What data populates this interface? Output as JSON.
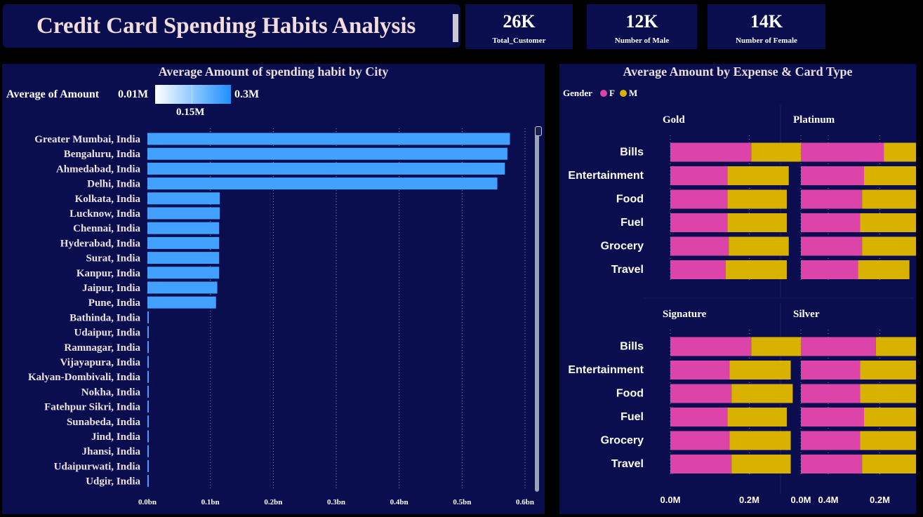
{
  "header": {
    "title": "Credit Card Spending Habits Analysis"
  },
  "kpis": [
    {
      "value": "26K",
      "label": "Total_Customer"
    },
    {
      "value": "12K",
      "label": "Number of Male"
    },
    {
      "value": "14K",
      "label": "Number of Female"
    }
  ],
  "colors": {
    "panel": "#0a0e4e",
    "bar": "#42a0ff",
    "female": "#dd44aa",
    "male": "#d9b200"
  },
  "chart_data": [
    {
      "type": "bar",
      "orientation": "horizontal",
      "title": "Average Amount of spending habit by City",
      "legend": {
        "label": "Average of Amount",
        "min": "0.01M",
        "mid": "0.15M",
        "max": "0.3M"
      },
      "categories": [
        "Greater Mumbai, India",
        "Bengaluru, India",
        "Ahmedabad, India",
        "Delhi, India",
        "Kolkata, India",
        "Lucknow, India",
        "Chennai, India",
        "Hyderabad, India",
        "Surat, India",
        "Kanpur, India",
        "Jaipur, India",
        "Pune, India",
        "Bathinda, India",
        "Udaipur, India",
        "Ramnagar, India",
        "Vijayapura, India",
        "Kalyan-Dombivali, India",
        "Nokha, India",
        "Fatehpur Sikri, India",
        "Sunabeda, India",
        "Jind, India",
        "Jhansi, India",
        "Udaipurwati, India",
        "Udgir, India"
      ],
      "values": [
        0.576,
        0.572,
        0.568,
        0.556,
        0.115,
        0.115,
        0.114,
        0.114,
        0.114,
        0.114,
        0.111,
        0.109,
        0.002,
        0.002,
        0.002,
        0.002,
        0.002,
        0.002,
        0.002,
        0.002,
        0.002,
        0.002,
        0.002,
        0.002
      ],
      "ticks": [
        "0.0bn",
        "0.1bn",
        "0.2bn",
        "0.3bn",
        "0.4bn",
        "0.5bn",
        "0.6bn"
      ],
      "xlim": [
        0,
        0.6
      ]
    },
    {
      "type": "bar",
      "orientation": "horizontal",
      "stacked": true,
      "title": "Average Amount by Expense & Card Type",
      "legend": {
        "title": "Gender",
        "items": [
          "F",
          "M"
        ]
      },
      "categories": [
        "Bills",
        "Entertainment",
        "Food",
        "Fuel",
        "Grocery",
        "Travel"
      ],
      "ticks": [
        "0.0M",
        "0.2M",
        "0.4M"
      ],
      "xlim": [
        0,
        0.4
      ],
      "facets": [
        {
          "name": "Gold",
          "series": [
            {
              "name": "F",
              "values": [
                0.205,
                0.145,
                0.145,
                0.145,
                0.148,
                0.14
              ]
            },
            {
              "name": "M",
              "values": [
                0.15,
                0.155,
                0.15,
                0.15,
                0.152,
                0.155
              ]
            }
          ]
        },
        {
          "name": "Platinum",
          "series": [
            {
              "name": "F",
              "values": [
                0.21,
                0.16,
                0.155,
                0.15,
                0.155,
                0.145
              ]
            },
            {
              "name": "M",
              "values": [
                0.145,
                0.155,
                0.155,
                0.15,
                0.15,
                0.13
              ]
            }
          ]
        },
        {
          "name": "Signature",
          "series": [
            {
              "name": "F",
              "values": [
                0.205,
                0.15,
                0.155,
                0.145,
                0.15,
                0.155
              ]
            },
            {
              "name": "M",
              "values": [
                0.15,
                0.155,
                0.155,
                0.15,
                0.155,
                0.15
              ]
            }
          ]
        },
        {
          "name": "Silver",
          "series": [
            {
              "name": "F",
              "values": [
                0.19,
                0.15,
                0.15,
                0.16,
                0.15,
                0.155
              ]
            },
            {
              "name": "M",
              "values": [
                0.15,
                0.15,
                0.145,
                0.155,
                0.155,
                0.155
              ]
            }
          ]
        }
      ]
    }
  ]
}
